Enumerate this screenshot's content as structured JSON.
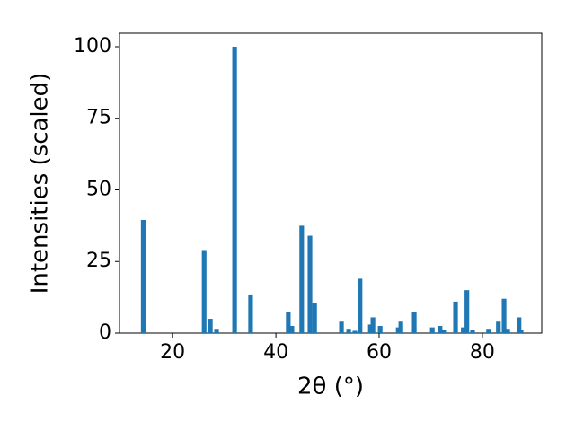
{
  "chart_data": {
    "type": "bar",
    "xlabel": "2θ (°)",
    "ylabel": "Intensities (scaled)",
    "color": "#1f77b4",
    "x": [
      14.3,
      26.1,
      27.3,
      28.5,
      32.0,
      35.1,
      42.4,
      43.1,
      45.0,
      46.6,
      47.5,
      52.7,
      54.1,
      55.3,
      56.3,
      58.3,
      58.8,
      60.2,
      63.7,
      64.2,
      66.8,
      70.3,
      71.8,
      72.5,
      74.8,
      76.3,
      77.0,
      78.1,
      81.2,
      83.1,
      84.2,
      84.9,
      87.1,
      87.5
    ],
    "values": [
      39.5,
      29,
      5,
      1.5,
      100,
      13.5,
      7.5,
      2.5,
      37.5,
      34,
      10.5,
      4,
      1.5,
      0.8,
      19,
      3,
      5.5,
      2.5,
      2,
      4,
      7.5,
      2,
      2.5,
      1,
      11,
      2,
      15,
      1,
      1.5,
      4,
      12,
      1.5,
      5.5,
      1
    ],
    "xlim": [
      9.7,
      91.5
    ],
    "ylim": [
      0,
      104.7
    ],
    "xticks": [
      20,
      40,
      60,
      80
    ],
    "yticks": [
      0,
      25,
      50,
      75,
      100
    ]
  }
}
